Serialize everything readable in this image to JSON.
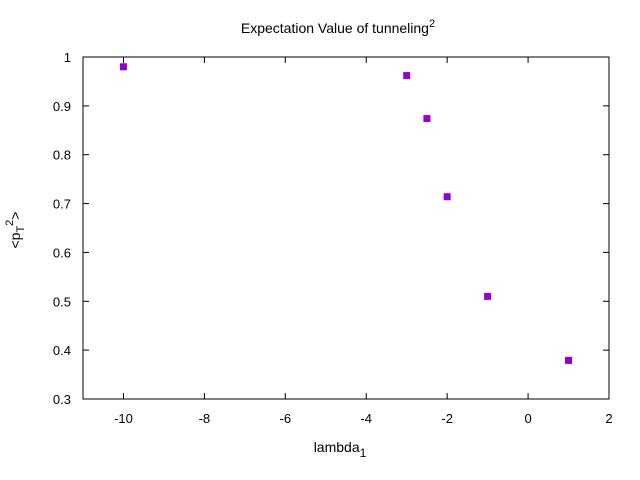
{
  "chart_data": {
    "type": "scatter",
    "title": "Expectation Value of tunneling",
    "title_sup": "2",
    "xlabel": "lambda",
    "xlabel_sub": "1",
    "ylabel_prefix": "<p",
    "ylabel_sub": "T",
    "ylabel_sup": "2",
    "ylabel_suffix": ">",
    "xlim": [
      -11,
      2
    ],
    "ylim": [
      0.3,
      1.0
    ],
    "xticks": [
      -10,
      -8,
      -6,
      -4,
      -2,
      0,
      2
    ],
    "yticks": [
      0.3,
      0.4,
      0.5,
      0.6,
      0.7,
      0.8,
      0.9,
      1.0
    ],
    "ytick_labels": [
      "0.3",
      "0.4",
      "0.5",
      "0.6",
      "0.7",
      "0.8",
      "0.9",
      "1"
    ],
    "series": [
      {
        "name": "tunneling",
        "color": "#9400d3",
        "marker": "square",
        "x": [
          -10,
          -3,
          -2.5,
          -2,
          -1,
          1
        ],
        "y": [
          0.98,
          0.962,
          0.874,
          0.714,
          0.51,
          0.379
        ]
      }
    ],
    "grid": false,
    "legend": "none"
  }
}
